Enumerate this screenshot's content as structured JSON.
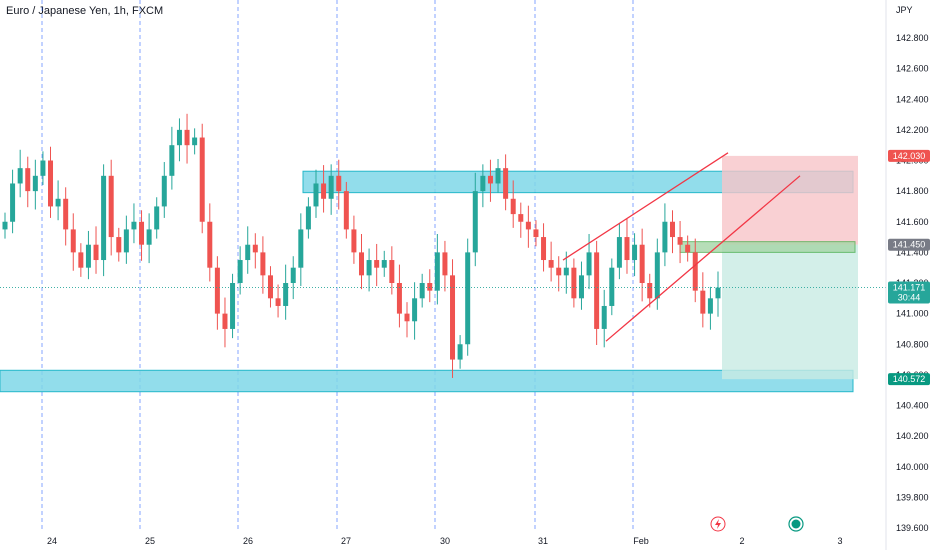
{
  "chart_data": {
    "type": "candlestick",
    "title": "Euro / Japanese Yen, 1h, FXCM",
    "yunit": "JPY",
    "ylim": [
      139.5,
      143.0
    ],
    "y_ticks": [
      "139.600",
      "139.800",
      "140.000",
      "140.200",
      "140.400",
      "140.600",
      "140.800",
      "141.000",
      "141.200",
      "141.400",
      "141.600",
      "141.800",
      "142.000",
      "142.200",
      "142.400",
      "142.600",
      "142.800"
    ],
    "x_ticks": [
      "24",
      "25",
      "26",
      "27",
      "30",
      "31",
      "Feb",
      "2",
      "3"
    ],
    "closes": [
      141.6,
      141.85,
      141.95,
      141.8,
      141.9,
      142.0,
      141.7,
      141.75,
      141.55,
      141.4,
      141.3,
      141.45,
      141.35,
      141.9,
      141.5,
      141.4,
      141.55,
      141.6,
      141.45,
      141.55,
      141.7,
      141.9,
      142.1,
      142.2,
      142.1,
      142.15,
      141.6,
      141.3,
      141.0,
      140.9,
      141.2,
      141.35,
      141.45,
      141.4,
      141.25,
      141.1,
      141.05,
      141.2,
      141.3,
      141.55,
      141.7,
      141.85,
      141.75,
      141.9,
      141.8,
      141.55,
      141.4,
      141.25,
      141.35,
      141.3,
      141.35,
      141.2,
      141.0,
      140.95,
      141.1,
      141.2,
      141.15,
      141.4,
      141.25,
      140.7,
      140.8,
      141.4,
      141.8,
      141.9,
      141.85,
      141.95,
      141.75,
      141.65,
      141.6,
      141.55,
      141.5,
      141.35,
      141.3,
      141.25,
      141.3,
      141.1,
      141.25,
      141.4,
      140.9,
      141.05,
      141.3,
      141.5,
      141.35,
      141.45,
      141.2,
      141.1,
      141.4,
      141.6,
      141.5,
      141.45,
      141.4,
      141.15,
      141.0,
      141.1,
      141.17
    ],
    "annotations": {
      "current_price": "141.171",
      "countdown": "30:44",
      "stop_price": "142.030",
      "entry_price": "141.450",
      "target_price": "140.572"
    },
    "grid": "vertical-dashed"
  },
  "colors": {
    "up": "#26a69a",
    "down": "#ef5350",
    "zone": "#7fd8e8",
    "zone_border": "#00acc1",
    "stop_zone": "#f8c4c8",
    "target_zone": "#c8ebe3",
    "channel": "#f23645",
    "grid": "#2962ff"
  },
  "footer_icons": [
    "lightning-icon",
    "indicator-circle-icon"
  ]
}
